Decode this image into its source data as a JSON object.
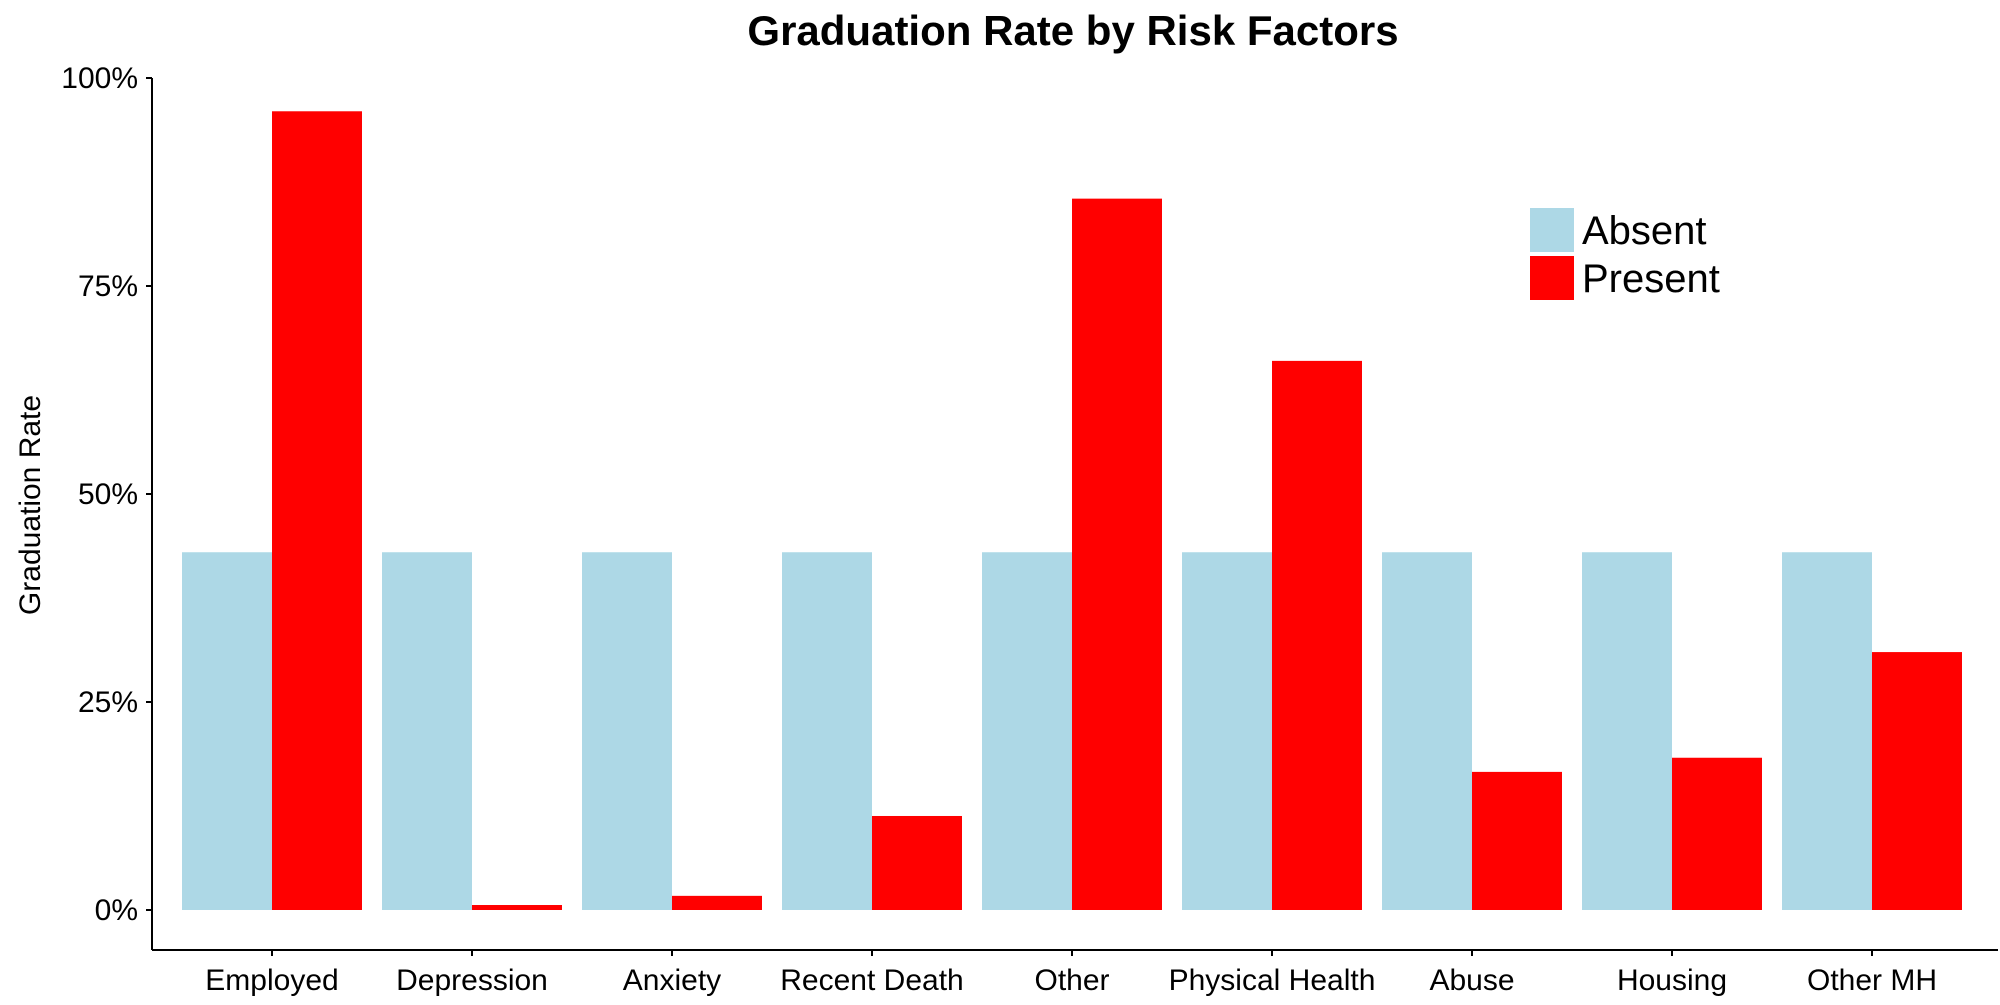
{
  "chart_data": {
    "type": "bar",
    "title": "Graduation Rate by Risk Factors",
    "xlabel": "",
    "ylabel": "Graduation Rate",
    "ylim": [
      0,
      1
    ],
    "yticks": [
      0,
      0.25,
      0.5,
      0.75,
      1
    ],
    "ytick_labels": [
      "0%",
      "25%",
      "50%",
      "75%",
      "100%"
    ],
    "categories": [
      "Employed",
      "Depression",
      "Anxiety",
      "Recent Death",
      "Other",
      "Physical Health",
      "Abuse",
      "Housing",
      "Other MH"
    ],
    "series": [
      {
        "name": "Absent",
        "color": "#add8e6",
        "values": [
          0.43,
          0.43,
          0.43,
          0.43,
          0.43,
          0.43,
          0.43,
          0.43,
          0.43
        ]
      },
      {
        "name": "Present",
        "color": "#ff0000",
        "values": [
          0.96,
          0.006,
          0.017,
          0.113,
          0.855,
          0.66,
          0.166,
          0.183,
          0.31
        ]
      }
    ],
    "grid": false,
    "legend_position": "top-right"
  }
}
